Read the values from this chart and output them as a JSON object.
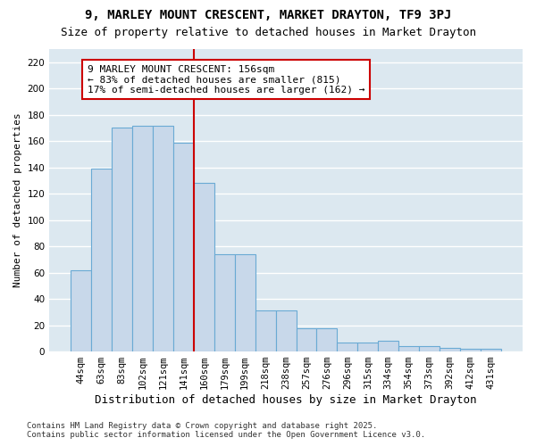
{
  "title": "9, MARLEY MOUNT CRESCENT, MARKET DRAYTON, TF9 3PJ",
  "subtitle": "Size of property relative to detached houses in Market Drayton",
  "xlabel": "Distribution of detached houses by size in Market Drayton",
  "ylabel": "Number of detached properties",
  "categories": [
    "44sqm",
    "63sqm",
    "83sqm",
    "102sqm",
    "121sqm",
    "141sqm",
    "160sqm",
    "179sqm",
    "199sqm",
    "218sqm",
    "238sqm",
    "257sqm",
    "276sqm",
    "296sqm",
    "315sqm",
    "334sqm",
    "354sqm",
    "373sqm",
    "392sqm",
    "412sqm",
    "431sqm"
  ],
  "values": [
    62,
    139,
    170,
    172,
    172,
    159,
    128,
    74,
    74,
    31,
    31,
    18,
    18,
    7,
    7,
    8,
    4,
    4,
    3,
    2,
    2
  ],
  "bar_color": "#c8d8ea",
  "bar_edge_color": "#6aaad4",
  "vline_color": "#cc0000",
  "annotation_text": "9 MARLEY MOUNT CRESCENT: 156sqm\n← 83% of detached houses are smaller (815)\n17% of semi-detached houses are larger (162) →",
  "annotation_box_color": "#ffffff",
  "annotation_box_edge": "#cc0000",
  "ylim": [
    0,
    230
  ],
  "yticks": [
    0,
    20,
    40,
    60,
    80,
    100,
    120,
    140,
    160,
    180,
    200,
    220
  ],
  "plot_bg_color": "#dce8f0",
  "fig_bg_color": "#ffffff",
  "grid_color": "#ffffff",
  "footer": "Contains HM Land Registry data © Crown copyright and database right 2025.\nContains public sector information licensed under the Open Government Licence v3.0.",
  "title_fontsize": 10,
  "subtitle_fontsize": 9,
  "ylabel_fontsize": 8,
  "xlabel_fontsize": 9,
  "tick_fontsize": 7.5,
  "annotation_fontsize": 8,
  "footer_fontsize": 6.5
}
